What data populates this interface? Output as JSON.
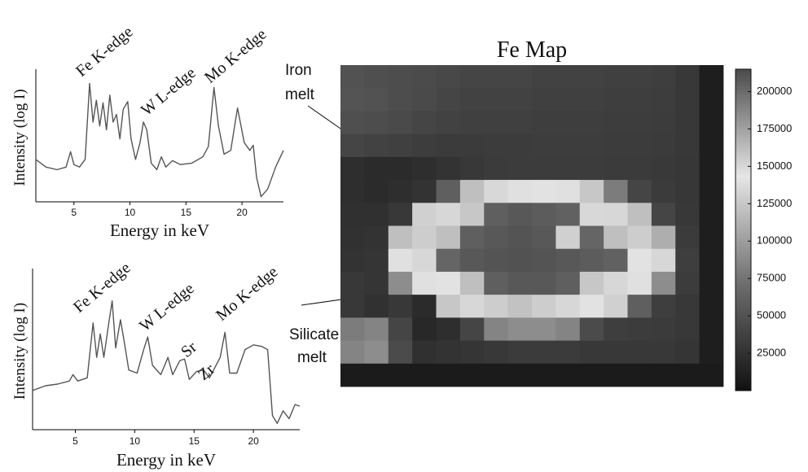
{
  "chart_data": [
    {
      "type": "line",
      "xlabel": "Energy in keV",
      "ylabel": "Intensity (log I)",
      "color": "#555555",
      "x": [
        1.6,
        2.5,
        3.5,
        4.3,
        4.7,
        5.0,
        5.5,
        6.0,
        6.4,
        6.7,
        7.0,
        7.3,
        7.6,
        7.9,
        8.2,
        8.5,
        8.8,
        9.1,
        9.4,
        9.8,
        10.1,
        10.5,
        10.9,
        11.2,
        11.5,
        11.9,
        12.4,
        12.8,
        13.2,
        13.8,
        14.5,
        15.5,
        16.5,
        17.0,
        17.5,
        17.9,
        18.4,
        19.0,
        19.6,
        20.2,
        20.7,
        21.0,
        21.3,
        21.7,
        22.3,
        23.0,
        23.7
      ],
      "values": [
        33,
        27,
        25,
        27,
        39,
        29,
        27,
        33,
        92,
        62,
        79,
        59,
        77,
        56,
        83,
        62,
        68,
        49,
        72,
        78,
        49,
        33,
        46,
        62,
        56,
        30,
        25,
        35,
        27,
        32,
        29,
        30,
        35,
        43,
        89,
        59,
        37,
        40,
        73,
        46,
        40,
        44,
        19,
        4,
        10,
        27,
        40
      ],
      "xlim": [
        1.6,
        23.7
      ],
      "ylim": [
        0,
        100
      ],
      "xticks": [
        5,
        10,
        15,
        20
      ],
      "annotations": [
        "Fe K-edge",
        "W L-edge",
        "Mo K-edge"
      ]
    },
    {
      "type": "line",
      "xlabel": "Energy in keV",
      "ylabel": "Intensity (log I)",
      "color": "#555555",
      "x": [
        1.4,
        2.5,
        3.5,
        4.5,
        4.8,
        5.2,
        6.0,
        6.5,
        6.8,
        7.1,
        7.4,
        7.8,
        8.1,
        8.4,
        8.8,
        9.1,
        9.5,
        10.2,
        10.8,
        11.1,
        11.5,
        12.2,
        12.8,
        13.2,
        13.8,
        14.2,
        14.6,
        15.2,
        15.8,
        16.3,
        17.2,
        17.6,
        18.0,
        18.6,
        19.3,
        20.0,
        20.7,
        21.2,
        21.6,
        22.0,
        22.5,
        23.0,
        23.5,
        23.9
      ],
      "values": [
        25,
        28,
        29,
        31,
        35,
        31,
        33,
        68,
        46,
        61,
        46,
        67,
        82,
        52,
        70,
        57,
        38,
        36,
        52,
        59,
        41,
        35,
        46,
        35,
        44,
        45,
        32,
        37,
        38,
        33,
        46,
        62,
        36,
        36,
        51,
        54,
        53,
        51,
        9,
        4,
        12,
        7,
        16,
        15
      ],
      "xlim": [
        1.4,
        23.9
      ],
      "ylim": [
        0,
        100
      ],
      "xticks": [
        5,
        10,
        15,
        20
      ],
      "annotations": [
        "Fe K-edge",
        "W L-edge",
        "Sr",
        "Zr",
        "Mo K-edge"
      ]
    },
    {
      "type": "heatmap",
      "title": "Fe Map",
      "colormap": [
        "#111111",
        "#6e6e6e",
        "#e6e6e6",
        "#4a4a4a"
      ],
      "clim": [
        0,
        215000
      ],
      "cticks": [
        25000,
        50000,
        75000,
        100000,
        125000,
        150000,
        175000,
        200000
      ],
      "values": [
        [
          50000,
          48000,
          46000,
          45000,
          42000,
          40000,
          40000,
          40000,
          38000,
          38000,
          38000,
          36000,
          36000,
          35000,
          30000,
          10000
        ],
        [
          52000,
          50000,
          46000,
          44000,
          40000,
          38000,
          38000,
          38000,
          36000,
          36000,
          36000,
          35000,
          35000,
          34000,
          30000,
          10000
        ],
        [
          48000,
          46000,
          44000,
          40000,
          38000,
          36000,
          36000,
          36000,
          35000,
          35000,
          35000,
          34000,
          34000,
          33000,
          30000,
          10000
        ],
        [
          40000,
          38000,
          36000,
          34000,
          32000,
          32000,
          33000,
          33000,
          34000,
          34000,
          34000,
          33000,
          33000,
          32000,
          30000,
          10000
        ],
        [
          22000,
          20000,
          20000,
          22000,
          26000,
          30000,
          32000,
          33000,
          33000,
          33000,
          33000,
          32000,
          32000,
          31000,
          29000,
          10000
        ],
        [
          22000,
          20000,
          22000,
          26000,
          60000,
          120000,
          135000,
          140000,
          145000,
          140000,
          125000,
          80000,
          40000,
          32000,
          29000,
          10000
        ],
        [
          24000,
          24000,
          30000,
          130000,
          150000,
          125000,
          60000,
          55000,
          58000,
          62000,
          135000,
          150000,
          120000,
          40000,
          30000,
          10000
        ],
        [
          25000,
          26000,
          120000,
          155000,
          120000,
          60000,
          55000,
          52000,
          55000,
          130000,
          65000,
          120000,
          155000,
          110000,
          32000,
          10000
        ],
        [
          26000,
          28000,
          140000,
          150000,
          65000,
          55000,
          52000,
          50000,
          52000,
          55000,
          58000,
          62000,
          145000,
          150000,
          35000,
          10000
        ],
        [
          30000,
          28000,
          90000,
          140000,
          145000,
          120000,
          60000,
          55000,
          55000,
          60000,
          125000,
          150000,
          140000,
          90000,
          33000,
          10000
        ],
        [
          30000,
          25000,
          30000,
          20000,
          125000,
          150000,
          155000,
          160000,
          155000,
          150000,
          145000,
          130000,
          60000,
          35000,
          30000,
          10000
        ],
        [
          80000,
          85000,
          40000,
          18000,
          22000,
          40000,
          85000,
          90000,
          90000,
          85000,
          45000,
          35000,
          33000,
          32000,
          30000,
          10000
        ],
        [
          85000,
          90000,
          45000,
          24000,
          26000,
          28000,
          30000,
          32000,
          32000,
          32000,
          30000,
          30000,
          30000,
          30000,
          28000,
          10000
        ],
        [
          8000,
          8000,
          8000,
          8000,
          8000,
          8000,
          8000,
          8000,
          8000,
          8000,
          8000,
          8000,
          8000,
          8000,
          8000,
          8000
        ]
      ],
      "annotations": [
        [
          "Iron",
          "melt"
        ],
        [
          "Silicate",
          "melt"
        ]
      ]
    }
  ]
}
